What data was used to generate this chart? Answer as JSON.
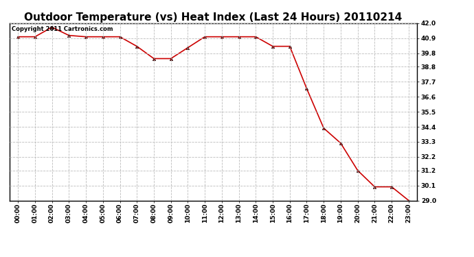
{
  "title": "Outdoor Temperature (vs) Heat Index (Last 24 Hours) 20110214",
  "copyright_text": "Copyright 2011 Cartronics.com",
  "x_labels": [
    "00:00",
    "01:00",
    "02:00",
    "03:00",
    "04:00",
    "05:00",
    "06:00",
    "07:00",
    "08:00",
    "09:00",
    "10:00",
    "11:00",
    "12:00",
    "13:00",
    "14:00",
    "15:00",
    "16:00",
    "17:00",
    "18:00",
    "19:00",
    "20:00",
    "21:00",
    "22:00",
    "23:00"
  ],
  "y_values": [
    41.0,
    41.0,
    41.7,
    41.1,
    41.0,
    41.0,
    41.0,
    40.3,
    39.4,
    39.4,
    40.2,
    41.0,
    41.0,
    41.0,
    41.0,
    40.3,
    40.3,
    37.2,
    34.3,
    33.2,
    31.2,
    30.0,
    30.0,
    29.0
  ],
  "line_color": "#cc0000",
  "marker": "^",
  "marker_color": "#000000",
  "marker_size": 3,
  "ylim_min": 29.0,
  "ylim_max": 42.0,
  "ytick_values": [
    29.0,
    30.1,
    31.2,
    32.2,
    33.3,
    34.4,
    35.5,
    36.6,
    37.7,
    38.8,
    39.8,
    40.9,
    42.0
  ],
  "background_color": "#ffffff",
  "plot_bg_color": "#ffffff",
  "grid_color": "#bbbbbb",
  "title_fontsize": 11,
  "copyright_fontsize": 6,
  "tick_fontsize": 6.5,
  "border_color": "#000000"
}
